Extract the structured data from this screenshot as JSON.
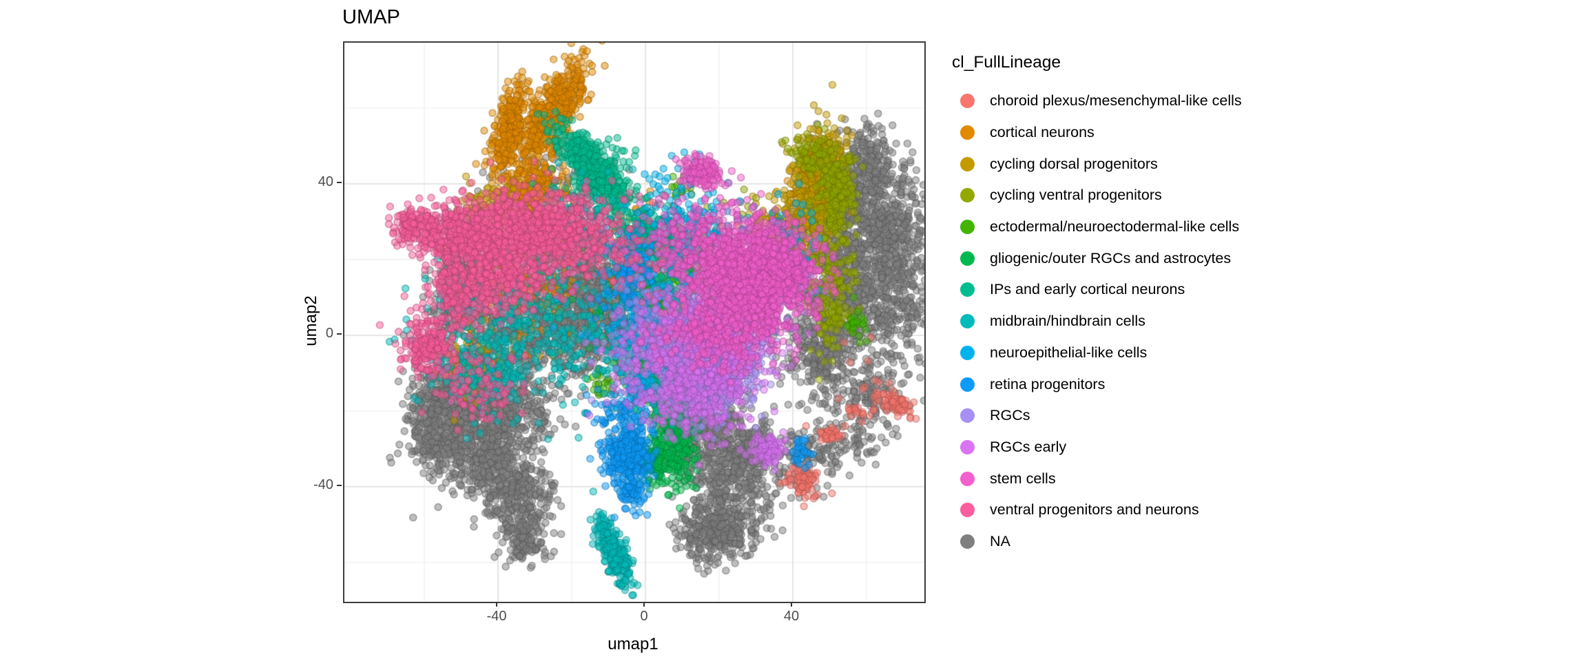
{
  "title": "UMAP",
  "axes": {
    "x": {
      "label": "umap1",
      "ticks": [
        {
          "v": -40,
          "label": "-40"
        },
        {
          "v": 0,
          "label": "0"
        },
        {
          "v": 40,
          "label": "40"
        }
      ]
    },
    "y": {
      "label": "umap2",
      "ticks": [
        {
          "v": 40,
          "label": "40"
        },
        {
          "v": 0,
          "label": "0"
        },
        {
          "v": -40,
          "label": "-40"
        }
      ]
    }
  },
  "legend": {
    "title": "cl_FullLineage",
    "items": [
      {
        "label": "choroid plexus/mesenchymal-like cells",
        "color": "#F8766D"
      },
      {
        "label": "cortical neurons",
        "color": "#E18A00"
      },
      {
        "label": "cycling dorsal progenitors",
        "color": "#C39B00"
      },
      {
        "label": "cycling ventral progenitors",
        "color": "#93A800"
      },
      {
        "label": "ectodermal/neuroectodermal-like cells",
        "color": "#42B500"
      },
      {
        "label": "gliogenic/outer RGCs and astrocytes",
        "color": "#00B94E"
      },
      {
        "label": "IPs and early cortical neurons",
        "color": "#00BD8F"
      },
      {
        "label": "midbrain/hindbrain cells",
        "color": "#00BBBA"
      },
      {
        "label": "neuroepithelial-like cells",
        "color": "#00B3EE"
      },
      {
        "label": "retina progenitors",
        "color": "#0E9BF9"
      },
      {
        "label": "RGCs",
        "color": "#A690F4"
      },
      {
        "label": "RGCs early",
        "color": "#D974F4"
      },
      {
        "label": "stem cells",
        "color": "#F45FCE"
      },
      {
        "label": "ventral progenitors and neurons",
        "color": "#FB5E9C"
      },
      {
        "label": "NA",
        "color": "#7F7F7F"
      }
    ]
  },
  "chart_data": {
    "type": "scatter",
    "title": "UMAP",
    "xlabel": "umap1",
    "ylabel": "umap2",
    "xlim": [
      -81.7,
      75.7
    ],
    "ylim": [
      -70.4,
      77.3
    ],
    "x_major_gridlines": [
      -40,
      0,
      40
    ],
    "x_minor_gridlines": [
      -60,
      -20,
      20,
      60
    ],
    "y_major_gridlines": [
      -40,
      0,
      40
    ],
    "y_minor_gridlines": [
      -60,
      -20,
      20,
      60
    ],
    "grid": true,
    "legend_position": "right",
    "point_seed": 42,
    "blob_fields": [
      "cx",
      "cy",
      "sx",
      "sy",
      "rot_deg",
      "n"
    ],
    "clusters": [
      {
        "lineage": "NA",
        "blobs": [
          [
            -50,
            15,
            4,
            8,
            0,
            350
          ],
          [
            -30,
            2,
            12,
            7,
            0,
            700
          ],
          [
            -14,
            10,
            7,
            8,
            0,
            450
          ],
          [
            -45,
            -10,
            6,
            4,
            0,
            250
          ],
          [
            -25,
            20,
            10,
            6,
            0,
            250
          ],
          [
            -55,
            -18,
            5,
            5,
            0,
            350
          ],
          [
            -40,
            -20,
            8,
            5,
            0,
            450
          ],
          [
            -45,
            -32,
            6,
            5,
            0,
            350
          ],
          [
            -35,
            -42,
            5,
            5,
            0,
            300
          ],
          [
            -33,
            -53,
            3,
            3.5,
            0,
            150
          ],
          [
            -57,
            -28,
            4,
            4,
            0,
            150
          ],
          [
            13,
            -20,
            5,
            5,
            0,
            300
          ],
          [
            20,
            -32,
            5,
            6,
            0,
            300
          ],
          [
            19,
            -52,
            5,
            4,
            0,
            350
          ],
          [
            28,
            -30,
            4,
            6,
            0,
            200
          ],
          [
            25,
            -44,
            6,
            5,
            0,
            150
          ],
          [
            57,
            30,
            7,
            8,
            0,
            500
          ],
          [
            64,
            10,
            7,
            9,
            0,
            500
          ],
          [
            50,
            8,
            5,
            8,
            0,
            300
          ],
          [
            60,
            45,
            5,
            5,
            0,
            250
          ],
          [
            68,
            28,
            5,
            8,
            0,
            250
          ],
          [
            60,
            -16,
            6,
            5,
            0,
            150
          ],
          [
            47,
            -5,
            4,
            6,
            0,
            200
          ],
          [
            0,
            5,
            16,
            12,
            0,
            350
          ],
          [
            -20,
            38,
            10,
            6,
            0,
            80
          ],
          [
            43,
            -33,
            5,
            4,
            0,
            120
          ],
          [
            55,
            -28,
            5,
            3,
            0,
            60
          ]
        ]
      },
      {
        "lineage": "choroid plexus/mesenchymal-like cells",
        "blobs": [
          [
            67.5,
            -18,
            2.8,
            1.2,
            -20,
            70
          ],
          [
            42.5,
            -39,
            2.6,
            1.8,
            -30,
            80
          ],
          [
            50.5,
            -26.5,
            1.8,
            1.2,
            0,
            35
          ],
          [
            57,
            -20,
            1.5,
            1,
            0,
            15
          ],
          [
            60,
            -10,
            4,
            5,
            0,
            15
          ]
        ]
      },
      {
        "lineage": "cortical neurons",
        "blobs": [
          [
            -25,
            59,
            7.5,
            2.8,
            55,
            500
          ],
          [
            -37,
            55,
            6,
            2,
            70,
            280
          ],
          [
            -31,
            39,
            4,
            4,
            0,
            300
          ],
          [
            -33,
            15,
            8,
            10,
            0,
            150
          ],
          [
            46,
            42,
            3,
            4,
            0,
            110
          ],
          [
            -5,
            25,
            8,
            6,
            0,
            60
          ]
        ]
      },
      {
        "lineage": "cycling dorsal progenitors",
        "blobs": [
          [
            48,
            42,
            3.5,
            7,
            0,
            450
          ],
          [
            41,
            30,
            4.5,
            4,
            0,
            220
          ],
          [
            -42,
            36,
            4,
            3,
            0,
            70
          ],
          [
            -48,
            -8,
            5,
            5,
            0,
            60
          ],
          [
            35,
            22,
            6,
            6,
            0,
            80
          ]
        ]
      },
      {
        "lineage": "cycling ventral progenitors",
        "blobs": [
          [
            52,
            38,
            2.5,
            6,
            0,
            220
          ],
          [
            51,
            10,
            3,
            8,
            0,
            160
          ],
          [
            45,
            48,
            3,
            3,
            0,
            80
          ],
          [
            30,
            25,
            8,
            6,
            0,
            60
          ]
        ]
      },
      {
        "lineage": "ectodermal/neuroectodermal-like cells",
        "blobs": [
          [
            12,
            20,
            5,
            4,
            0,
            110
          ],
          [
            4,
            10,
            3,
            3,
            0,
            60
          ],
          [
            9,
            39,
            1.5,
            1.5,
            0,
            12
          ],
          [
            57,
            3,
            1.5,
            2.5,
            0,
            25
          ],
          [
            -12,
            -13,
            2,
            2,
            0,
            20
          ],
          [
            20,
            12,
            6,
            5,
            0,
            50
          ]
        ]
      },
      {
        "lineage": "gliogenic/outer RGCs and astrocytes",
        "blobs": [
          [
            8.5,
            -26,
            2.5,
            7.5,
            0,
            320
          ],
          [
            2.5,
            -33,
            2.2,
            2.8,
            0,
            160
          ],
          [
            4,
            -13,
            4,
            4,
            0,
            140
          ],
          [
            -2,
            2,
            7,
            7,
            0,
            90
          ],
          [
            8,
            24,
            3,
            3,
            0,
            50
          ]
        ]
      },
      {
        "lineage": "IPs and early cortical neurons",
        "blobs": [
          [
            -15,
            45,
            6.5,
            2.5,
            -48,
            420
          ],
          [
            0,
            28,
            3.5,
            3,
            0,
            140
          ],
          [
            -12,
            40,
            6,
            6,
            0,
            120
          ],
          [
            5,
            15,
            6,
            6,
            0,
            80
          ]
        ]
      },
      {
        "lineage": "midbrain/hindbrain cells",
        "blobs": [
          [
            -8.5,
            -57,
            1.6,
            5,
            25,
            280
          ],
          [
            -32,
            2,
            13,
            10,
            0,
            400
          ],
          [
            -18,
            28,
            8,
            6,
            0,
            150
          ],
          [
            0,
            -8,
            6,
            6,
            0,
            100
          ],
          [
            -45,
            -12,
            8,
            4,
            0,
            120
          ]
        ]
      },
      {
        "lineage": "neuroepithelial-like cells",
        "blobs": [
          [
            12,
            28,
            7,
            5,
            0,
            160
          ],
          [
            2,
            8,
            10,
            9,
            0,
            260
          ],
          [
            -1.5,
            -14,
            1.8,
            1.8,
            0,
            60
          ],
          [
            38,
            22,
            5,
            7,
            0,
            120
          ],
          [
            8,
            40,
            4,
            3,
            0,
            30
          ]
        ]
      },
      {
        "lineage": "retina progenitors",
        "blobs": [
          [
            -4.5,
            -31,
            3.2,
            3.8,
            0,
            380
          ],
          [
            -3.5,
            -42,
            1.8,
            2.6,
            0,
            80
          ],
          [
            -7,
            -20,
            3,
            3,
            0,
            70
          ],
          [
            42,
            -31,
            1.5,
            2,
            0,
            30
          ],
          [
            -4,
            14,
            4,
            7,
            0,
            130
          ],
          [
            8,
            -5,
            8,
            6,
            0,
            80
          ]
        ]
      },
      {
        "lineage": "RGCs",
        "blobs": [
          [
            16,
            -9,
            6,
            6.5,
            0,
            750
          ],
          [
            11,
            2,
            6,
            5,
            0,
            300
          ],
          [
            24,
            -2,
            5,
            5,
            0,
            200
          ],
          [
            0,
            0,
            6,
            8,
            0,
            100
          ]
        ]
      },
      {
        "lineage": "RGCs early",
        "blobs": [
          [
            14,
            -14,
            7.5,
            6.5,
            0,
            350
          ],
          [
            20,
            0,
            9,
            7,
            0,
            280
          ],
          [
            33.5,
            -30,
            2.2,
            2,
            0,
            90
          ],
          [
            0,
            -5,
            6,
            7,
            0,
            120
          ],
          [
            30,
            8,
            6,
            5,
            0,
            120
          ]
        ]
      },
      {
        "lineage": "stem cells",
        "blobs": [
          [
            28,
            16,
            9,
            7.5,
            0,
            1100
          ],
          [
            32,
            17,
            5.5,
            5,
            0,
            700
          ],
          [
            15.5,
            43,
            2.8,
            2.2,
            0,
            140
          ],
          [
            22,
            2,
            9,
            5,
            0,
            280
          ],
          [
            12,
            25,
            8,
            6,
            0,
            200
          ]
        ]
      },
      {
        "lineage": "ventral progenitors and neurons",
        "blobs": [
          [
            -30,
            28,
            8,
            5,
            0,
            600
          ],
          [
            -48,
            27,
            7,
            4.5,
            0,
            450
          ],
          [
            -62,
            29,
            3.5,
            2.5,
            0,
            150
          ],
          [
            -40,
            16,
            7,
            5,
            0,
            350
          ],
          [
            -59,
            -3,
            3.2,
            3.5,
            0,
            200
          ],
          [
            -52,
            10,
            4,
            6,
            0,
            150
          ],
          [
            -15,
            25,
            9,
            7,
            0,
            250
          ],
          [
            -47,
            -14,
            6,
            5,
            0,
            90
          ]
        ]
      }
    ]
  }
}
